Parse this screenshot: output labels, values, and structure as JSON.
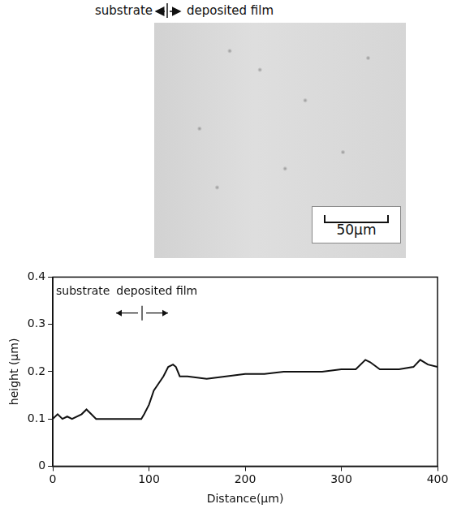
{
  "header": {
    "left": "substrate",
    "right": "deposited film"
  },
  "photo": {
    "scale_bar": "50μm"
  },
  "chart_data": {
    "type": "line",
    "x_label": "Distance(μm)",
    "y_label": "height (μm)",
    "annotations": [
      "substrate",
      "deposited film"
    ],
    "x": [
      0,
      5,
      10,
      15,
      20,
      30,
      35,
      40,
      45,
      60,
      80,
      92,
      95,
      100,
      105,
      110,
      115,
      120,
      125,
      128,
      132,
      140,
      160,
      180,
      200,
      220,
      240,
      260,
      280,
      300,
      315,
      325,
      330,
      340,
      360,
      375,
      382,
      390,
      400
    ],
    "values": [
      0.1,
      0.11,
      0.1,
      0.105,
      0.1,
      0.11,
      0.12,
      0.11,
      0.1,
      0.1,
      0.1,
      0.1,
      0.11,
      0.13,
      0.16,
      0.175,
      0.19,
      0.21,
      0.215,
      0.21,
      0.19,
      0.19,
      0.185,
      0.19,
      0.195,
      0.195,
      0.2,
      0.2,
      0.2,
      0.205,
      0.205,
      0.225,
      0.22,
      0.205,
      0.205,
      0.21,
      0.225,
      0.215,
      0.21
    ],
    "color": "#111111",
    "xlim": [
      0,
      400
    ],
    "xticks": [
      0,
      100,
      200,
      300,
      400
    ],
    "ylim": [
      0,
      0.4
    ],
    "yticks": [
      0,
      0.1,
      0.2,
      0.3,
      0.4
    ],
    "grid": false
  }
}
